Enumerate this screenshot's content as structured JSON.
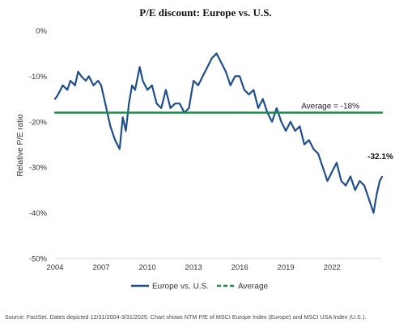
{
  "chart_data": {
    "type": "line",
    "title": "P/E discount: Europe vs. U.S.",
    "ylabel": "Relative P/E ratio",
    "xlabel": "",
    "xlim": [
      2004,
      2025.25
    ],
    "ylim": [
      -50,
      0
    ],
    "x_ticks": [
      2004,
      2007,
      2010,
      2013,
      2016,
      2019,
      2022
    ],
    "x_tick_labels": [
      "2004",
      "2007",
      "2010",
      "2013",
      "2016",
      "2019",
      "2022"
    ],
    "y_ticks": [
      0,
      -10,
      -20,
      -30,
      -40,
      -50
    ],
    "y_tick_labels": [
      "0%",
      "-10%",
      "-20%",
      "-30%",
      "-40%",
      "-50%"
    ],
    "grid": false,
    "legend_position": "bottom",
    "series": [
      {
        "name": "Europe vs. U.S.",
        "color": "#1f4e8c",
        "line_style": "solid",
        "x": [
          2004.0,
          2004.2,
          2004.5,
          2004.8,
          2005.0,
          2005.3,
          2005.5,
          2005.7,
          2006.0,
          2006.2,
          2006.5,
          2006.8,
          2007.0,
          2007.2,
          2007.4,
          2007.6,
          2007.9,
          2008.2,
          2008.4,
          2008.6,
          2008.8,
          2009.0,
          2009.2,
          2009.5,
          2009.7,
          2010.0,
          2010.3,
          2010.6,
          2010.9,
          2011.2,
          2011.5,
          2011.8,
          2012.1,
          2012.4,
          2012.7,
          2013.0,
          2013.3,
          2013.6,
          2013.9,
          2014.2,
          2014.5,
          2014.8,
          2015.1,
          2015.4,
          2015.7,
          2016.0,
          2016.3,
          2016.6,
          2016.9,
          2017.2,
          2017.5,
          2017.8,
          2018.1,
          2018.4,
          2018.7,
          2019.0,
          2019.3,
          2019.6,
          2019.9,
          2020.2,
          2020.5,
          2020.8,
          2021.1,
          2021.4,
          2021.7,
          2022.0,
          2022.3,
          2022.6,
          2022.9,
          2023.2,
          2023.5,
          2023.8,
          2024.1,
          2024.3,
          2024.5,
          2024.7,
          2024.9,
          2025.1,
          2025.25
        ],
        "values": [
          -15,
          -14,
          -12,
          -13,
          -11,
          -12,
          -9,
          -10,
          -11,
          -10,
          -12,
          -11,
          -12,
          -15,
          -18,
          -21,
          -24,
          -26,
          -19,
          -22,
          -16,
          -12,
          -13,
          -8,
          -11,
          -13,
          -12,
          -16,
          -17,
          -13,
          -17,
          -16,
          -16,
          -18,
          -17,
          -11,
          -12,
          -10,
          -8,
          -6,
          -5,
          -7,
          -9,
          -12,
          -10,
          -10,
          -13,
          -14,
          -13,
          -17,
          -15,
          -18,
          -20,
          -17,
          -20,
          -22,
          -20,
          -22,
          -21,
          -25,
          -24,
          -26,
          -27,
          -30,
          -33,
          -31,
          -29,
          -33,
          -34,
          -32,
          -35,
          -33,
          -34,
          -36,
          -38,
          -40,
          -36,
          -33,
          -32.1
        ]
      },
      {
        "name": "Average",
        "color": "#1a8a4a",
        "line_style": "dashed",
        "x": [
          2004.0,
          2025.25
        ],
        "values": [
          -18,
          -18
        ]
      }
    ],
    "annotations": [
      {
        "text": "Average = -18%",
        "x": 2020.0,
        "y": -18
      },
      {
        "text": "-32.1%",
        "x": 2025.25,
        "y": -32.1
      }
    ]
  },
  "source_note": "Source: FactSet. Dates depicted 12/31/2004-3/31/2025. Chart shows NTM P/E of MSCI Europe Index (Europe) and MSCI USA Index (U.S.)."
}
